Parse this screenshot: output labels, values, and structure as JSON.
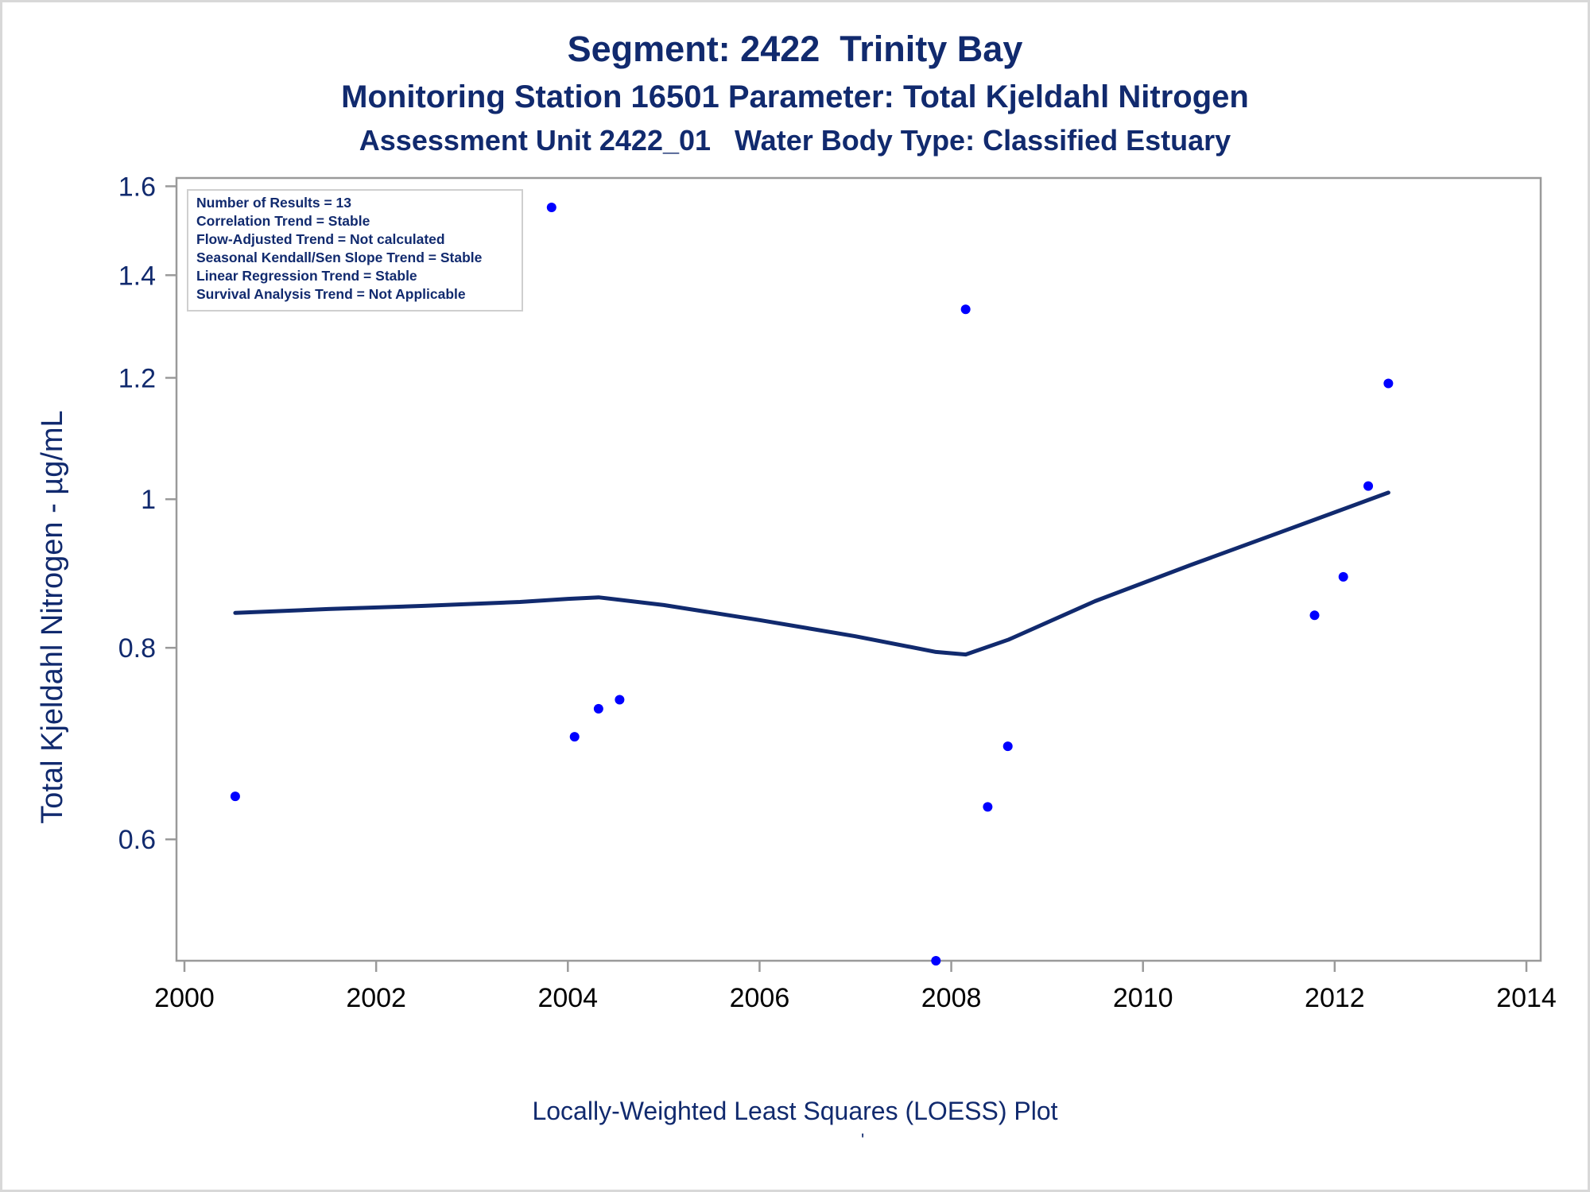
{
  "chart_data": {
    "type": "scatter",
    "title": "Segment: 2422  Trinity Bay",
    "subtitles": [
      "Monitoring Station 16501 Parameter: Total Kjeldahl Nitrogen",
      "Assessment Unit 2422_01   Water Body Type: Classified Estuary"
    ],
    "ylabel": "Total Kjeldahl Nitrogen -  µg/mL",
    "xlabel": "",
    "footnote": "Locally-Weighted Least Squares (LOESS) Plot",
    "footnote_mark": "'",
    "xlim": [
      2000,
      2014
    ],
    "ylim": [
      0.5,
      1.62
    ],
    "y_scale": "log",
    "x_ticks": [
      2000,
      2002,
      2004,
      2006,
      2008,
      2010,
      2012,
      2014
    ],
    "y_ticks": [
      0.6,
      0.8,
      1,
      1.2,
      1.4,
      1.6
    ],
    "y_tick_labels": [
      "0.6",
      "0.8",
      "1",
      "1.2",
      "1.4",
      "1.6"
    ],
    "grid": false,
    "legend": {
      "placement": "top-left",
      "lines": [
        "Number of Results = 13",
        "Correlation Trend = Stable",
        "Flow-Adjusted Trend = Not calculated",
        "Seasonal Kendall/Sen Slope Trend = Stable",
        "Linear Regression Trend = Stable",
        "Survival Analysis Trend = Not Applicable"
      ]
    },
    "series": [
      {
        "kind": "points",
        "color": "#0000ff",
        "x": [
          2000.53,
          2003.83,
          2004.07,
          2004.32,
          2004.54,
          2007.84,
          2008.15,
          2008.38,
          2008.59,
          2011.79,
          2012.09,
          2012.35,
          2012.56
        ],
        "y": [
          0.64,
          1.55,
          0.7,
          0.73,
          0.74,
          0.5,
          1.33,
          0.63,
          0.69,
          0.84,
          0.89,
          1.02,
          1.19
        ]
      },
      {
        "kind": "line",
        "color": "#112a6e",
        "x": [
          2000.53,
          2001.5,
          2002.5,
          2003.5,
          2004.0,
          2004.32,
          2005.0,
          2006.0,
          2007.0,
          2007.84,
          2008.15,
          2008.6,
          2009.5,
          2010.5,
          2011.5,
          2012.56
        ],
        "y": [
          0.843,
          0.848,
          0.852,
          0.857,
          0.861,
          0.863,
          0.853,
          0.834,
          0.814,
          0.795,
          0.792,
          0.81,
          0.858,
          0.906,
          0.955,
          1.01
        ]
      }
    ]
  }
}
